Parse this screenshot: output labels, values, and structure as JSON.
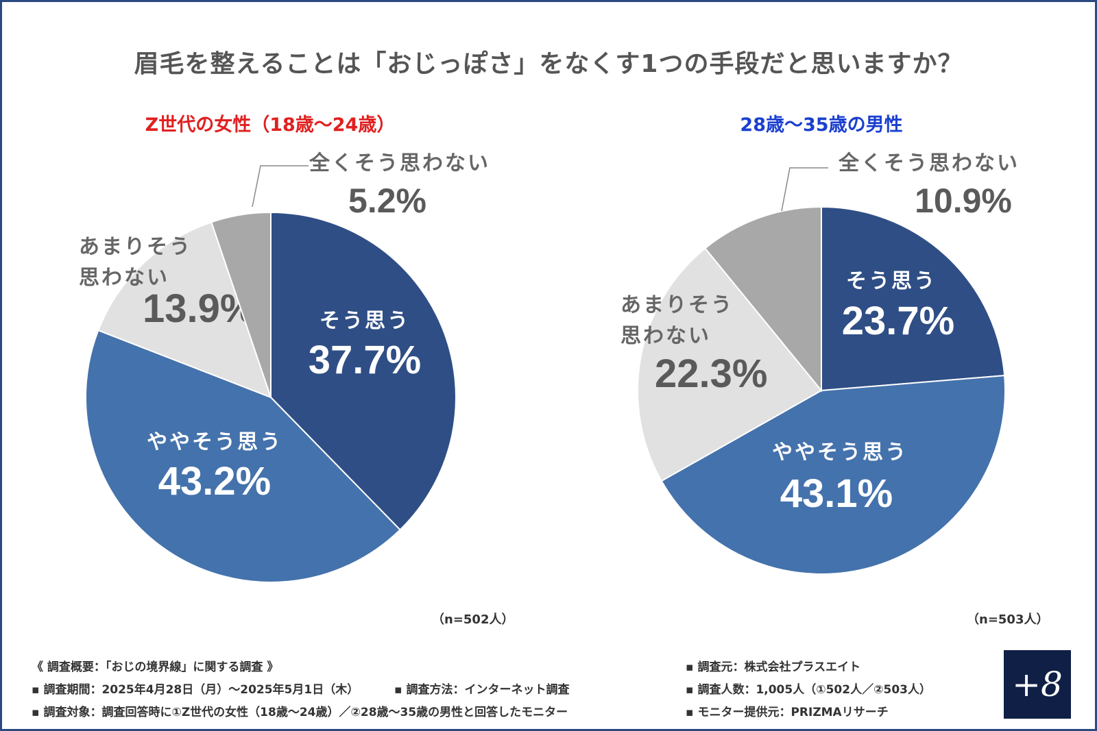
{
  "title": "眉毛を整えることは「おじっぽさ」をなくす1つの手段だと思いますか？",
  "chart_data": [
    {
      "type": "pie",
      "title": "Z世代の女性（18歳〜24歳）",
      "title_color": "#e02020",
      "sample": "（n=502人）",
      "slices": [
        {
          "name": "そう思う",
          "value": 37.7,
          "label": "37.7%",
          "color": "#2f4e85",
          "text_color": "#ffffff"
        },
        {
          "name": "ややそう思う",
          "value": 43.2,
          "label": "43.2%",
          "color": "#4472ac",
          "text_color": "#ffffff"
        },
        {
          "name": "あまりそう思わない",
          "value": 13.9,
          "label": "13.9%",
          "color": "#e1e1e1",
          "text_color": "#555555"
        },
        {
          "name": "全くそう思わない",
          "value": 5.2,
          "label": "5.2%",
          "color": "#a8a8a8",
          "text_color": "#555555"
        }
      ]
    },
    {
      "type": "pie",
      "title": "28歳〜35歳の男性",
      "title_color": "#1a3fd0",
      "sample": "（n=503人）",
      "slices": [
        {
          "name": "そう思う",
          "value": 23.7,
          "label": "23.7%",
          "color": "#2f4e85",
          "text_color": "#ffffff"
        },
        {
          "name": "ややそう思う",
          "value": 43.1,
          "label": "43.1%",
          "color": "#4472ac",
          "text_color": "#ffffff"
        },
        {
          "name": "あまりそう思わない",
          "value": 22.3,
          "label": "22.3%",
          "color": "#e1e1e1",
          "text_color": "#555555"
        },
        {
          "name": "全くそう思わない",
          "value": 10.9,
          "label": "10.9%",
          "color": "#a8a8a8",
          "text_color": "#555555"
        }
      ]
    }
  ],
  "footer": {
    "survey_name": "《 調査概要：「おじの境界線」に関する調査 》",
    "period": "▪ 調査期間：2025年4月28日（月）〜2025年5月1日（木）",
    "method": "▪ 調査方法：インターネット調査",
    "target": "▪ 調査対象：調査回答時に①Z世代の女性（18歳〜24歳）／②28歳〜35歳の男性と回答したモニター",
    "source": "▪ 調査元：株式会社プラスエイト",
    "count": "▪ 調査人数：1,005人（①502人／②503人）",
    "monitor": "▪ モニター提供元：PRIZMAリサーチ"
  },
  "logo": "+8"
}
